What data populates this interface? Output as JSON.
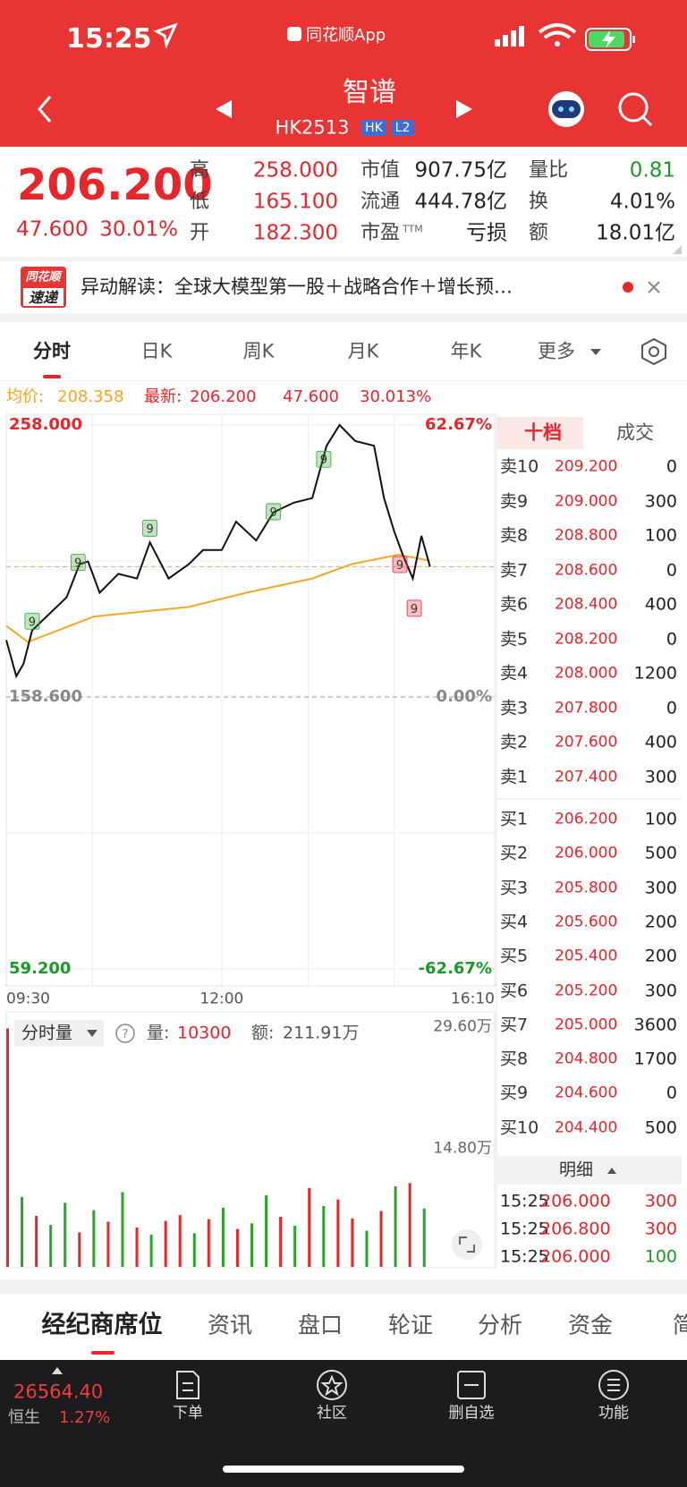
{
  "status_bar": {
    "time": "15:25",
    "app": "同花顺App"
  },
  "header": {
    "title": "智谱",
    "code": "HK2513",
    "badges": [
      "HK",
      "L2"
    ]
  },
  "quote": {
    "price": "206.200",
    "change": "47.600",
    "change_pct": "30.01%",
    "color": "#e7252b",
    "stats": [
      {
        "label": "高",
        "value": "258.000",
        "color": "#e7252b"
      },
      {
        "label": "低",
        "value": "165.100",
        "color": "#e7252b"
      },
      {
        "label": "开",
        "value": "182.300",
        "color": "#e7252b"
      },
      {
        "label": "市值",
        "value": "907.75亿",
        "color": "#222222"
      },
      {
        "label": "流通",
        "value": "444.78亿",
        "color": "#222222"
      },
      {
        "label": "市盈",
        "sup": "TTM",
        "value": "亏损",
        "color": "#222222"
      },
      {
        "label": "量比",
        "value": "0.81",
        "color": "#1a9a2a"
      },
      {
        "label": "换",
        "value": "4.01%",
        "color": "#222222"
      },
      {
        "label": "额",
        "value": "18.01亿",
        "color": "#222222"
      }
    ]
  },
  "news": {
    "logo": [
      "同花顺",
      "速递"
    ],
    "text": "异动解读：全球大模型第一股＋战略合作＋增长预…"
  },
  "tabs": [
    "分时",
    "日K",
    "周K",
    "月K",
    "年K",
    "更多"
  ],
  "info": {
    "avg_label": "均价:",
    "avg": "208.358",
    "last_label": "最新:",
    "last": "206.200",
    "change": "47.600",
    "change_pct": "30.013%"
  },
  "chart_data": [
    {
      "type": "line",
      "x": [
        0,
        7,
        12,
        18,
        28,
        42,
        51,
        57,
        65,
        78,
        91,
        100,
        113,
        127,
        137,
        150,
        160,
        174,
        186,
        200,
        213,
        223,
        232,
        243,
        256,
        263,
        270,
        276,
        283,
        289,
        295
      ],
      "series": [
        {
          "color": "#111111",
          "values": [
            179.4,
            166.2,
            170.7,
            182.9,
            188.0,
            195.0,
            207.1,
            208.1,
            196.7,
            203.6,
            201.9,
            215.1,
            201.9,
            207.1,
            212.3,
            212.3,
            222.7,
            215.8,
            226.1,
            229.6,
            231.3,
            250.4,
            258.0,
            252.1,
            250.4,
            231.3,
            219.2,
            210.6,
            201.9,
            217.5,
            206.2
          ]
        },
        {
          "color": "#f5a623",
          "x": [
            0,
            15,
            61,
            127,
            167,
            213,
            240,
            273,
            295
          ],
          "values": [
            184.6,
            178.7,
            188.0,
            191.5,
            196.7,
            201.9,
            207.1,
            210.6,
            208.4
          ]
        }
      ],
      "xlim": [
        0,
        340
      ],
      "xticks": [
        {
          "value": 0,
          "label": "09:30"
        },
        {
          "value": 150,
          "label": "12:00"
        },
        {
          "value": 340,
          "label": "16:10"
        }
      ],
      "xgrid": [
        60,
        150,
        210,
        270
      ],
      "ylim": [
        59.2,
        258
      ],
      "yticks": [
        {
          "value": 258,
          "label": "258.000"
        },
        {
          "value": 158.6,
          "label": "158.600"
        },
        {
          "value": 59.2,
          "label": "59.200"
        }
      ],
      "ygrid": [
        208.3,
        108.9
      ],
      "y2lim": [
        -62.67,
        62.67
      ],
      "y2ticks": [
        {
          "value": 62.67,
          "label": "62.67%"
        },
        {
          "value": 0,
          "label": "0.00%"
        },
        {
          "value": -62.67,
          "label": "-62.67%"
        }
      ],
      "signals": [
        {
          "x": 18,
          "y": 186.3,
          "label": "9",
          "color": "#2aa52a"
        },
        {
          "x": 50,
          "y": 207.8,
          "label": "9",
          "color": "#2aa52a"
        },
        {
          "x": 100,
          "y": 220.3,
          "label": "9",
          "color": "#2aa52a"
        },
        {
          "x": 186,
          "y": 226.3,
          "label": "9",
          "color": "#2aa52a"
        },
        {
          "x": 221,
          "y": 245.5,
          "label": "9",
          "color": "#2aa52a"
        },
        {
          "x": 274,
          "y": 207.0,
          "label": "9",
          "color": "#e7252b"
        },
        {
          "x": 284,
          "y": 191.0,
          "label": "9",
          "color": "#e7252b"
        }
      ]
    },
    {
      "type": "bar",
      "x": [
        0,
        10,
        20,
        30,
        40,
        50,
        60,
        70,
        80,
        90,
        100,
        110,
        120,
        130,
        140,
        150,
        160,
        170,
        180,
        190,
        200,
        210,
        220,
        230,
        240,
        250,
        260,
        270,
        280,
        290
      ],
      "values": [
        29.0,
        8.5,
        6.2,
        5.1,
        7.8,
        4.2,
        6.9,
        5.5,
        9.1,
        4.8,
        3.9,
        5.6,
        6.3,
        4.1,
        5.8,
        7.2,
        4.6,
        5.3,
        8.7,
        6.1,
        5.0,
        9.6,
        7.4,
        8.2,
        5.9,
        4.4,
        6.8,
        9.8,
        10.2,
        7.1
      ],
      "colors": [
        "#e7252b",
        "#2aa52a",
        "#e7252b",
        "#2aa52a",
        "#2aa52a",
        "#e7252b",
        "#2aa52a",
        "#e7252b",
        "#2aa52a",
        "#e7252b",
        "#2aa52a",
        "#e7252b",
        "#e7252b",
        "#2aa52a",
        "#e7252b",
        "#2aa52a",
        "#e7252b",
        "#2aa52a",
        "#2aa52a",
        "#e7252b",
        "#2aa52a",
        "#e7252b",
        "#2aa52a",
        "#e7252b",
        "#e7252b",
        "#2aa52a",
        "#e7252b",
        "#2aa52a",
        "#e7252b",
        "#2aa52a"
      ],
      "xlim": [
        0,
        340
      ],
      "ylim": [
        0,
        29.6
      ],
      "yticks": [
        {
          "value": 14.8,
          "label": "14.80万"
        },
        {
          "value": 29.6,
          "label": "29.60万"
        }
      ],
      "selector": "分时量",
      "volume_label": "量:",
      "volume": 10300,
      "amount_label": "额:",
      "amount": "211.91万"
    }
  ],
  "order_book": {
    "tabs": [
      "十档",
      "成交"
    ],
    "asks": [
      {
        "label": "卖10",
        "price": "209.200",
        "qty": 0
      },
      {
        "label": "卖9",
        "price": "209.000",
        "qty": 300
      },
      {
        "label": "卖8",
        "price": "208.800",
        "qty": 100
      },
      {
        "label": "卖7",
        "price": "208.600",
        "qty": 0
      },
      {
        "label": "卖6",
        "price": "208.400",
        "qty": 400
      },
      {
        "label": "卖5",
        "price": "208.200",
        "qty": 0
      },
      {
        "label": "卖4",
        "price": "208.000",
        "qty": 1200
      },
      {
        "label": "卖3",
        "price": "207.800",
        "qty": 0
      },
      {
        "label": "卖2",
        "price": "207.600",
        "qty": 400
      },
      {
        "label": "卖1",
        "price": "207.400",
        "qty": 300
      }
    ],
    "bids": [
      {
        "label": "买1",
        "price": "206.200",
        "qty": 100
      },
      {
        "label": "买2",
        "price": "206.000",
        "qty": 500
      },
      {
        "label": "买3",
        "price": "205.800",
        "qty": 300
      },
      {
        "label": "买4",
        "price": "205.600",
        "qty": 200
      },
      {
        "label": "买5",
        "price": "205.400",
        "qty": 200
      },
      {
        "label": "买6",
        "price": "205.200",
        "qty": 300
      },
      {
        "label": "买7",
        "price": "205.000",
        "qty": 3600
      },
      {
        "label": "买8",
        "price": "204.800",
        "qty": 1700
      },
      {
        "label": "买9",
        "price": "204.600",
        "qty": 0
      },
      {
        "label": "买10",
        "price": "204.400",
        "qty": 500
      }
    ],
    "detail_title": "明细",
    "trades": [
      {
        "time": "15:25",
        "price": "206.000",
        "qty": 300,
        "qty_color": "#e7252b"
      },
      {
        "time": "15:25",
        "price": "206.800",
        "qty": 300,
        "qty_color": "#e7252b"
      },
      {
        "time": "15:25",
        "price": "206.000",
        "qty": 100,
        "qty_color": "#1a9a2a"
      }
    ]
  },
  "bottom_tabs": [
    "经纪商席位",
    "资讯",
    "盘口",
    "轮证",
    "分析",
    "资金",
    "简况"
  ],
  "nav": {
    "index": "26564.40",
    "index_name": "恒生",
    "index_pct": "1.27%",
    "items": [
      "下单",
      "社区",
      "删自选",
      "功能"
    ]
  }
}
